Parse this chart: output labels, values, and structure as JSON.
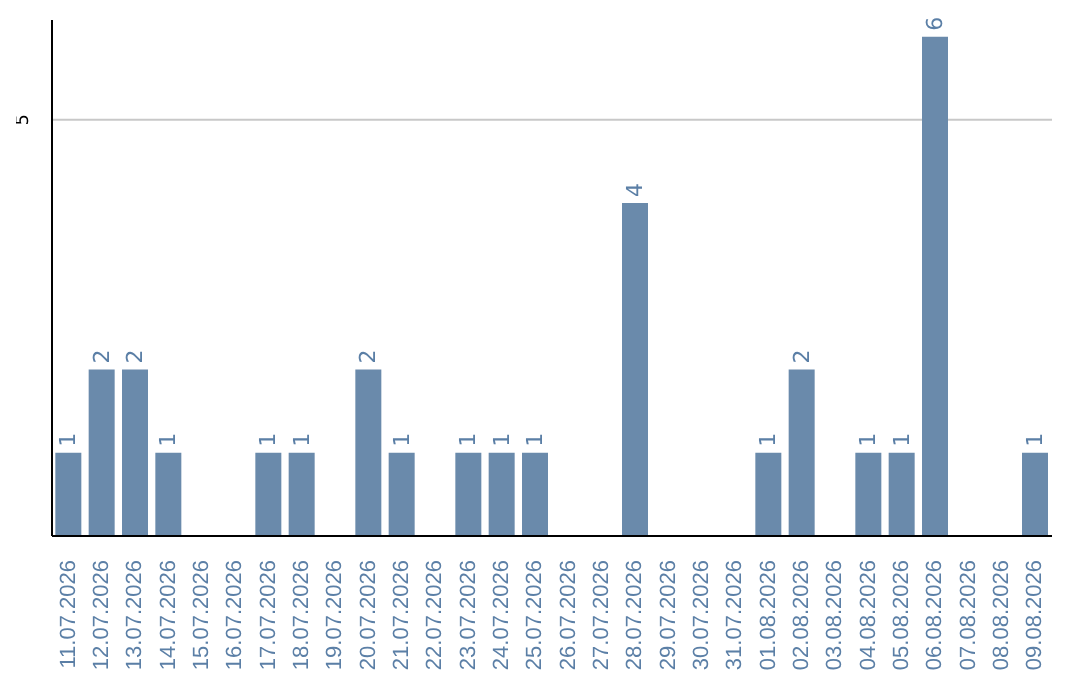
{
  "chart_data": {
    "type": "bar",
    "categories": [
      "11.07.2026",
      "12.07.2026",
      "13.07.2026",
      "14.07.2026",
      "15.07.2026",
      "16.07.2026",
      "17.07.2026",
      "18.07.2026",
      "19.07.2026",
      "20.07.2026",
      "21.07.2026",
      "22.07.2026",
      "23.07.2026",
      "24.07.2026",
      "25.07.2026",
      "26.07.2026",
      "27.07.2026",
      "28.07.2026",
      "29.07.2026",
      "30.07.2026",
      "31.07.2026",
      "01.08.2026",
      "02.08.2026",
      "03.08.2026",
      "04.08.2026",
      "05.08.2026",
      "06.08.2026",
      "07.08.2026",
      "08.08.2026",
      "09.08.2026"
    ],
    "values": [
      1,
      2,
      2,
      1,
      null,
      null,
      1,
      1,
      null,
      2,
      1,
      null,
      1,
      1,
      1,
      null,
      null,
      4,
      null,
      null,
      null,
      1,
      2,
      null,
      1,
      1,
      6,
      null,
      null,
      1
    ],
    "color": "#6a8aab",
    "ylim": [
      0,
      6.2
    ],
    "yticks": [
      5
    ],
    "grid": "y",
    "data_labels": true
  }
}
